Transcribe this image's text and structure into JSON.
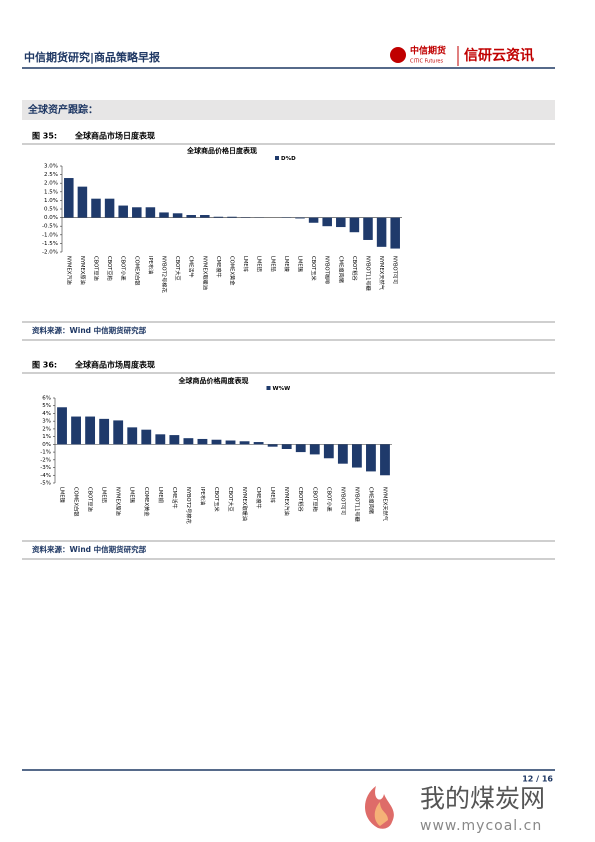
{
  "header": {
    "title": "中信期货研究|商品策略早报",
    "logo_cn": "中信期货",
    "logo_en": "CITIC Futures",
    "brand": "信研云资讯"
  },
  "section": "全球资产跟踪：",
  "figures": [
    {
      "label": "图 35:",
      "caption": "全球商品市场日度表现",
      "source": "资料来源：Wind 中信期货研究部"
    },
    {
      "label": "图 36:",
      "caption": "全球商品市场周度表现",
      "source": "资料来源：Wind 中信期货研究部"
    }
  ],
  "chart_data": [
    {
      "type": "bar",
      "title": "全球商品价格日度表现",
      "categories": [
        "NYMEX汽油",
        "NYMEX原油",
        "CBOT豆油",
        "CBOT豆粕",
        "CBOT小麦",
        "COMEX白银",
        "IPE布油",
        "NYBOT2号棉花",
        "CBOT大豆",
        "CME活牛",
        "NYMEX取暖油",
        "CME瘦牛",
        "COMEX黄金",
        "LME锌",
        "LME铝",
        "LME铅",
        "LME镍",
        "LME锡",
        "CBOT玉米",
        "NYBOT咖啡",
        "CME瘦肉猪",
        "CBOT稻谷",
        "NYBOT11号糖",
        "NYMEX天然气",
        "NYBOT可可"
      ],
      "series": [
        {
          "name": "D%D",
          "color": "#1f3a6b",
          "values": [
            2.3,
            1.8,
            1.1,
            1.1,
            0.7,
            0.6,
            0.6,
            0.3,
            0.25,
            0.15,
            0.15,
            0.05,
            0.05,
            0.02,
            0.01,
            0,
            -0.02,
            -0.05,
            -0.3,
            -0.5,
            -0.55,
            -0.85,
            -1.3,
            -1.7,
            -1.8
          ]
        }
      ],
      "ylim": [
        -2,
        3
      ],
      "yticks": [
        {
          "value": 3,
          "label": "3.0%"
        },
        {
          "value": 2.5,
          "label": "2.5%"
        },
        {
          "value": 2,
          "label": "2.0%"
        },
        {
          "value": 1.5,
          "label": "1.5%"
        },
        {
          "value": 1,
          "label": "1.0%"
        },
        {
          "value": 0.5,
          "label": "0.5%"
        },
        {
          "value": 0,
          "label": "0.0%"
        },
        {
          "value": -0.5,
          "label": "-0.5%"
        },
        {
          "value": -1,
          "label": "-1.0%"
        },
        {
          "value": -1.5,
          "label": "-1.5%"
        },
        {
          "value": -2,
          "label": "-2.0%"
        }
      ]
    },
    {
      "type": "bar",
      "title": "全球商品价格周度表现",
      "categories": [
        "LME镍",
        "COMEX白银",
        "CBOT豆油",
        "LME铝",
        "NYMEX原油",
        "LME锡",
        "COMEX黄金",
        "LME铜",
        "CME活牛",
        "NYBOT2号棉花",
        "IPE布油",
        "CBOT玉米",
        "CBOT大豆",
        "NYMEX取暖油",
        "CME瘦牛",
        "LME锌",
        "NYMEX汽油",
        "CBOT稻谷",
        "CBOT豆粕",
        "CBOT小麦",
        "NYBOT可可",
        "NYBOT11号糖",
        "CME瘦肉猪",
        "NYMEX天然气"
      ],
      "series": [
        {
          "name": "W%W",
          "color": "#1f3a6b",
          "values": [
            4.8,
            3.6,
            3.6,
            3.3,
            3.1,
            2.2,
            1.9,
            1.3,
            1.2,
            0.8,
            0.7,
            0.6,
            0.5,
            0.4,
            0.3,
            -0.3,
            -0.6,
            -1.0,
            -1.3,
            -1.8,
            -2.5,
            -3.0,
            -3.5,
            -4.0
          ]
        }
      ],
      "ylim": [
        -5,
        6
      ],
      "yticks": [
        {
          "value": 6,
          "label": "6%"
        },
        {
          "value": 5,
          "label": "5%"
        },
        {
          "value": 4,
          "label": "4%"
        },
        {
          "value": 3,
          "label": "3%"
        },
        {
          "value": 2,
          "label": "2%"
        },
        {
          "value": 1,
          "label": "1%"
        },
        {
          "value": 0,
          "label": "0%"
        },
        {
          "value": -1,
          "label": "-1%"
        },
        {
          "value": -2,
          "label": "-2%"
        },
        {
          "value": -3,
          "label": "-3%"
        },
        {
          "value": -4,
          "label": "-4%"
        },
        {
          "value": -5,
          "label": "-5%"
        }
      ]
    }
  ],
  "footer": {
    "page": "12 / 16"
  },
  "watermark": {
    "cn": "我的煤炭网",
    "url": "www.mycoal.cn"
  }
}
